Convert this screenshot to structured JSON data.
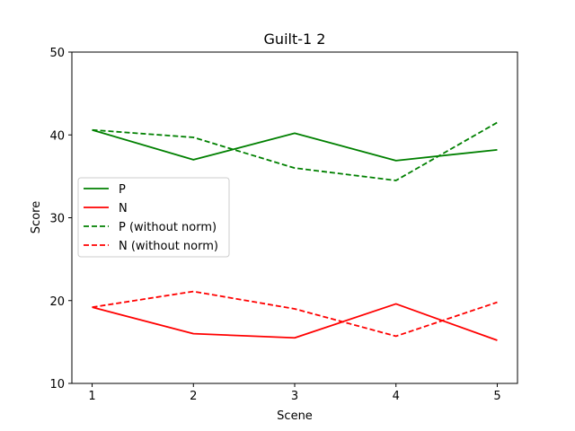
{
  "chart_data": {
    "type": "line",
    "title": "Guilt-1 2",
    "xlabel": "Scene",
    "ylabel": "Score",
    "x": [
      1,
      2,
      3,
      4,
      5
    ],
    "xlim": [
      0.8,
      5.2
    ],
    "ylim": [
      10,
      50
    ],
    "xticks": [
      "1",
      "2",
      "3",
      "4",
      "5"
    ],
    "yticks": [
      "10",
      "20",
      "30",
      "40",
      "50"
    ],
    "grid": false,
    "legend_position": "center-left",
    "series": [
      {
        "name": "P",
        "values": [
          40.6,
          37.0,
          40.2,
          36.9,
          38.2
        ],
        "color": "#008000",
        "style": "solid"
      },
      {
        "name": "N",
        "values": [
          19.2,
          16.0,
          15.5,
          19.6,
          15.2
        ],
        "color": "#ff0000",
        "style": "solid"
      },
      {
        "name": "P (without norm)",
        "values": [
          40.6,
          39.7,
          36.0,
          34.5,
          41.5
        ],
        "color": "#008000",
        "style": "dashed"
      },
      {
        "name": "N (without norm)",
        "values": [
          19.2,
          21.1,
          19.0,
          15.7,
          19.8
        ],
        "color": "#ff0000",
        "style": "dashed"
      }
    ]
  }
}
